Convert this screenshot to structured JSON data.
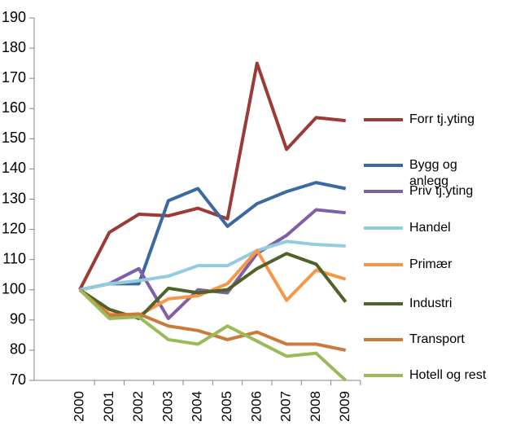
{
  "chart_data": {
    "type": "line",
    "categories": [
      "2000",
      "2001",
      "2002",
      "2003",
      "2004",
      "2005",
      "2006",
      "2007",
      "2008",
      "2009"
    ],
    "series": [
      {
        "name": "Forr tj.yting",
        "color": "#9b3a37",
        "values": [
          100,
          119,
          125,
          124.5,
          127,
          123.5,
          175,
          146.5,
          157,
          156
        ]
      },
      {
        "name": "Bygg og anlegg",
        "color": "#3c6aa0",
        "values": [
          100,
          102,
          102,
          129.5,
          133.5,
          121,
          128.5,
          132.5,
          135.5,
          133.5
        ]
      },
      {
        "name": "Priv tj.yting",
        "color": "#7f60a8",
        "values": [
          100,
          102,
          107,
          90.5,
          100,
          99,
          112,
          118,
          126.5,
          125.5
        ]
      },
      {
        "name": "Handel",
        "color": "#93cddd",
        "values": [
          100,
          102,
          103,
          104.5,
          108,
          108,
          113,
          116,
          115,
          114.5
        ]
      },
      {
        "name": "Primær",
        "color": "#f79646",
        "values": [
          100,
          92,
          91.5,
          97,
          98,
          102,
          113,
          96.5,
          106.5,
          103.5
        ]
      },
      {
        "name": "Industri",
        "color": "#4f6228",
        "values": [
          100,
          93.5,
          90.5,
          100.5,
          99,
          100,
          107,
          112,
          108.5,
          96
        ]
      },
      {
        "name": "Transport",
        "color": "#cc7a3a",
        "values": [
          100,
          91.5,
          92,
          88,
          86.5,
          83.5,
          86,
          82,
          82,
          80
        ]
      },
      {
        "name": "Hotell og rest",
        "color": "#9bbb59",
        "values": [
          100,
          90.5,
          91,
          83.5,
          82,
          88,
          83,
          78,
          79,
          70
        ]
      }
    ],
    "ylim": [
      70,
      190
    ],
    "yticks": [
      70,
      80,
      90,
      100,
      110,
      120,
      130,
      140,
      150,
      160,
      170,
      180,
      190
    ],
    "legend": "right"
  }
}
